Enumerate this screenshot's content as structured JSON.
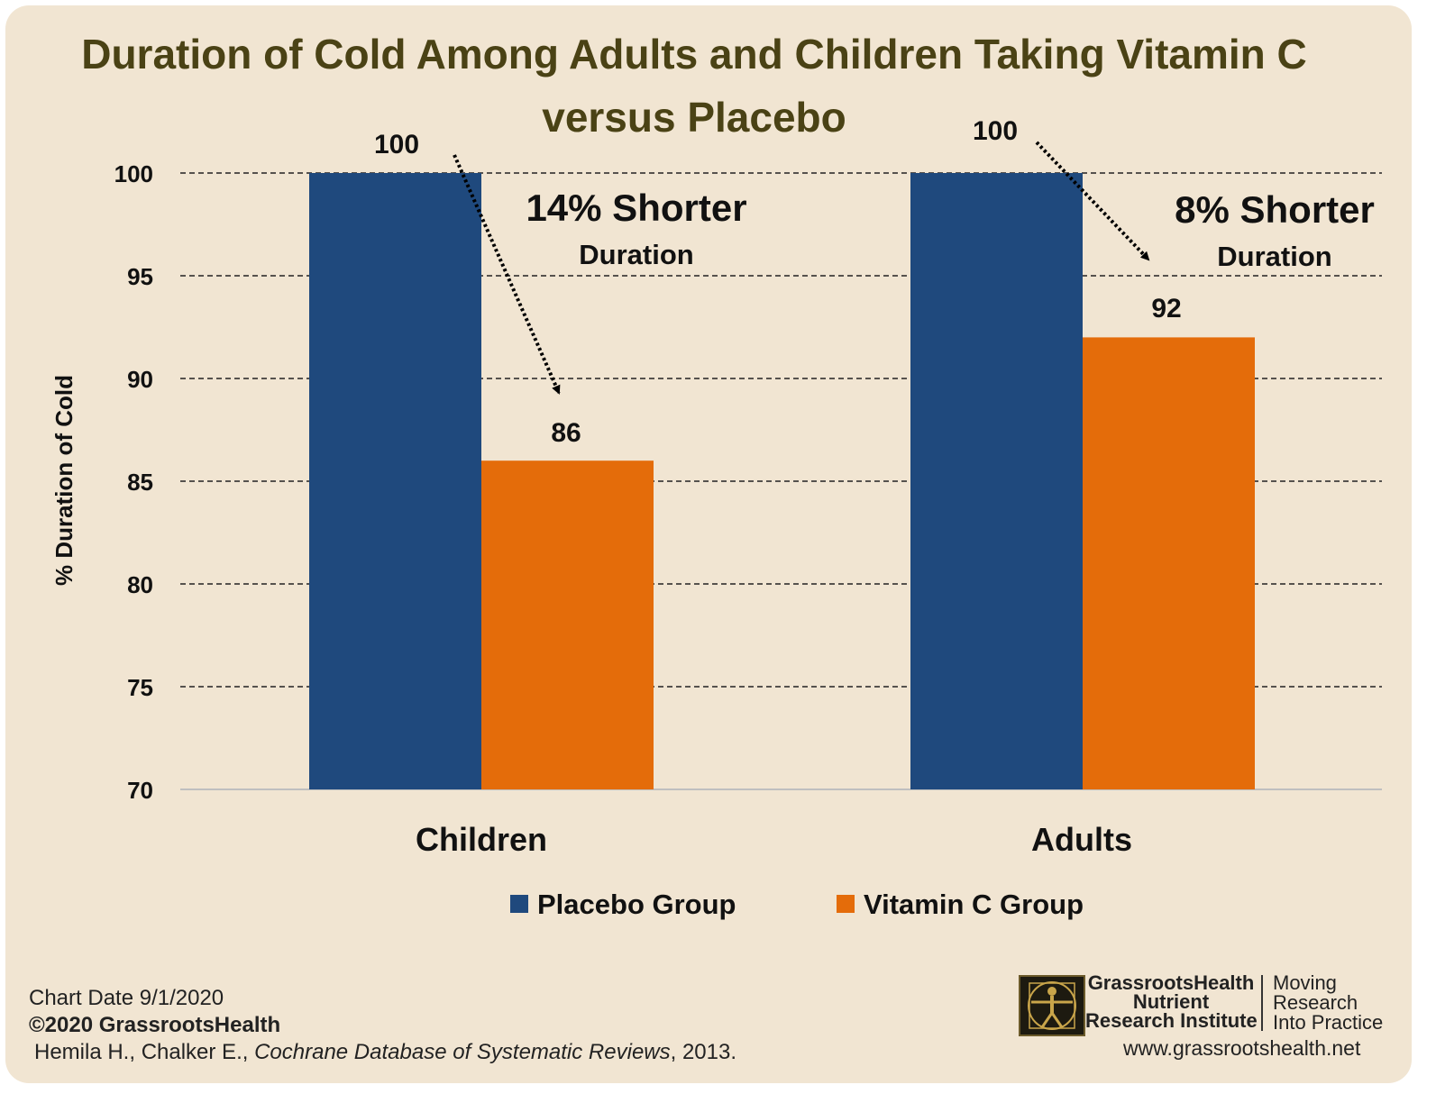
{
  "chart_data": {
    "type": "bar",
    "title_line1": "Duration of Cold Among Adults and Children Taking Vitamin C",
    "title_line2": "versus Placebo",
    "ylabel": "% Duration of Cold",
    "xlabel": "",
    "ylim": [
      70,
      100
    ],
    "yticks": [
      "100",
      "95",
      "90",
      "85",
      "80",
      "75",
      "70"
    ],
    "categories": [
      "Children",
      "Adults"
    ],
    "series": [
      {
        "name": "Placebo Group",
        "color": "#1f497d",
        "values": [
          100,
          100
        ],
        "labels": [
          "100",
          "100"
        ]
      },
      {
        "name": "Vitamin C Group",
        "color": "#e46c0a",
        "values": [
          86,
          92
        ],
        "labels": [
          "86",
          "92"
        ]
      }
    ],
    "grid": "dashed horizontal",
    "legend_position": "bottom",
    "annotations": [
      {
        "big": "14% Shorter",
        "small": "Duration"
      },
      {
        "big": "8% Shorter",
        "small": "Duration"
      }
    ]
  },
  "footer": {
    "chart_date": "Chart Date 9/1/2020",
    "copyright": "©2020 GrassrootsHealth",
    "citation_authors": "Hemila H., Chalker E., ",
    "citation_journal": "Cochrane Database of Systematic Reviews",
    "citation_year": ", 2013."
  },
  "branding": {
    "org_line1": "GrassrootsHealth",
    "org_line2": "Nutrient",
    "org_line3": "Research Institute",
    "tagline1": "Moving",
    "tagline2": "Research",
    "tagline3": "Into Practice",
    "url": "www.grassrootshealth.net",
    "logo_icon": "vitruvian-man-icon"
  }
}
